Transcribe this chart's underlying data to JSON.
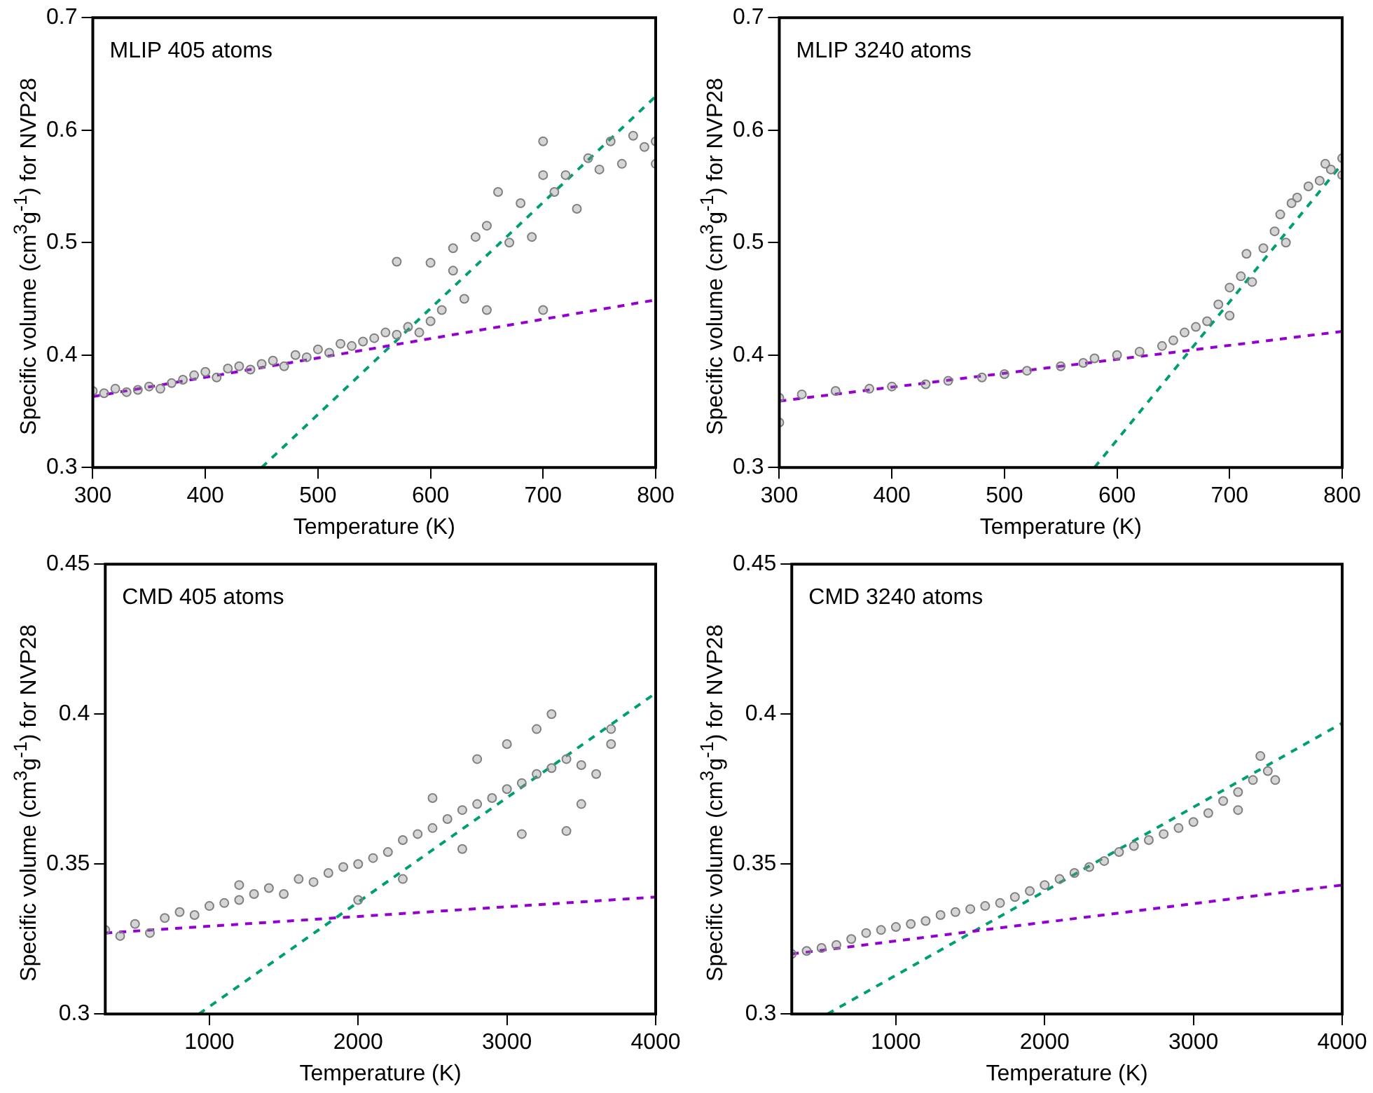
{
  "chart_data": [
    {
      "type": "scatter",
      "xlabel": "Temperature (K)",
      "ylabel": "Specific volume (cm$^{3}$g$^{-1}$) for NVP28",
      "annotations": [
        "MLIP 405 atoms"
      ],
      "xlim": [
        300,
        800
      ],
      "xticks": [
        300,
        400,
        500,
        600,
        700,
        800
      ],
      "ylim": [
        0.3,
        0.7
      ],
      "yticks": [
        0.3,
        0.4,
        0.5,
        0.6,
        0.7
      ],
      "grid": false,
      "legend": false,
      "series": [
        {
          "type": "scatter",
          "color": "#808080",
          "marker": "circle",
          "x": [
            300,
            310,
            320,
            330,
            340,
            350,
            360,
            370,
            380,
            390,
            400,
            410,
            420,
            430,
            440,
            450,
            460,
            470,
            480,
            490,
            500,
            510,
            520,
            530,
            540,
            550,
            560,
            570,
            570,
            580,
            590,
            600,
            600,
            610,
            620,
            620,
            630,
            640,
            650,
            650,
            660,
            670,
            680,
            690,
            700,
            700,
            700,
            710,
            720,
            730,
            740,
            750,
            760,
            770,
            780,
            790,
            800,
            800
          ],
          "values": [
            0.368,
            0.366,
            0.37,
            0.367,
            0.369,
            0.372,
            0.37,
            0.375,
            0.378,
            0.382,
            0.385,
            0.38,
            0.388,
            0.39,
            0.387,
            0.392,
            0.395,
            0.39,
            0.4,
            0.398,
            0.405,
            0.402,
            0.41,
            0.408,
            0.412,
            0.415,
            0.42,
            0.483,
            0.418,
            0.425,
            0.42,
            0.43,
            0.482,
            0.44,
            0.475,
            0.495,
            0.45,
            0.505,
            0.44,
            0.515,
            0.545,
            0.5,
            0.535,
            0.505,
            0.44,
            0.56,
            0.59,
            0.545,
            0.56,
            0.53,
            0.575,
            0.565,
            0.59,
            0.57,
            0.595,
            0.585,
            0.59,
            0.57
          ]
        },
        {
          "type": "line",
          "color": "#9400d3",
          "marker": "none",
          "line_style": "dashed",
          "x": [
            300,
            800
          ],
          "values": [
            0.363,
            0.449
          ]
        },
        {
          "type": "line",
          "color": "#009e73",
          "marker": "none",
          "line_style": "dashed",
          "x": [
            450,
            800
          ],
          "values": [
            0.3,
            0.63
          ]
        }
      ]
    },
    {
      "type": "scatter",
      "xlabel": "Temperature (K)",
      "ylabel": "Specific volume (cm$^{3}$g$^{-1}$) for NVP28",
      "annotations": [
        "MLIP 3240 atoms"
      ],
      "xlim": [
        300,
        800
      ],
      "xticks": [
        300,
        400,
        500,
        600,
        700,
        800
      ],
      "ylim": [
        0.3,
        0.7
      ],
      "yticks": [
        0.3,
        0.4,
        0.5,
        0.6,
        0.7
      ],
      "grid": false,
      "legend": false,
      "series": [
        {
          "type": "scatter",
          "color": "#808080",
          "marker": "circle",
          "x": [
            300,
            300,
            320,
            350,
            380,
            400,
            430,
            450,
            480,
            500,
            520,
            550,
            570,
            580,
            600,
            620,
            640,
            650,
            660,
            670,
            680,
            690,
            700,
            700,
            710,
            715,
            720,
            730,
            740,
            745,
            750,
            755,
            760,
            770,
            780,
            785,
            790,
            800,
            800
          ],
          "values": [
            0.34,
            0.362,
            0.365,
            0.368,
            0.37,
            0.372,
            0.374,
            0.377,
            0.38,
            0.383,
            0.386,
            0.39,
            0.393,
            0.397,
            0.4,
            0.403,
            0.408,
            0.413,
            0.42,
            0.425,
            0.43,
            0.445,
            0.46,
            0.435,
            0.47,
            0.49,
            0.465,
            0.495,
            0.51,
            0.525,
            0.5,
            0.535,
            0.54,
            0.55,
            0.555,
            0.57,
            0.565,
            0.56,
            0.575
          ]
        },
        {
          "type": "line",
          "color": "#9400d3",
          "marker": "none",
          "line_style": "dashed",
          "x": [
            300,
            800
          ],
          "values": [
            0.359,
            0.421
          ]
        },
        {
          "type": "line",
          "color": "#009e73",
          "marker": "none",
          "line_style": "dashed",
          "x": [
            580,
            800
          ],
          "values": [
            0.3,
            0.57
          ]
        }
      ]
    },
    {
      "type": "scatter",
      "xlabel": "Temperature (K)",
      "ylabel": "Specific volume (cm$^{3}$g$^{-1}$) for NVP28",
      "annotations": [
        "CMD 405 atoms"
      ],
      "xlim": [
        300,
        4000
      ],
      "xticks": [
        1000,
        2000,
        3000,
        4000
      ],
      "ylim": [
        0.3,
        0.45
      ],
      "yticks": [
        0.3,
        0.35,
        0.4,
        0.45
      ],
      "grid": false,
      "legend": false,
      "series": [
        {
          "type": "scatter",
          "color": "#808080",
          "marker": "circle",
          "x": [
            300,
            400,
            500,
            600,
            700,
            800,
            900,
            1000,
            1100,
            1200,
            1300,
            1400,
            1500,
            1600,
            1700,
            1800,
            1900,
            2000,
            2100,
            2200,
            2300,
            2400,
            2500,
            2600,
            2700,
            2800,
            2900,
            3000,
            3100,
            3200,
            3300,
            3400,
            3500,
            3600,
            3700,
            2000,
            2500,
            2800,
            3000,
            3200,
            3100,
            3400,
            3300,
            2700,
            2300,
            1200,
            3500,
            3700
          ],
          "values": [
            0.328,
            0.326,
            0.33,
            0.327,
            0.332,
            0.334,
            0.333,
            0.336,
            0.337,
            0.338,
            0.34,
            0.342,
            0.34,
            0.345,
            0.344,
            0.347,
            0.349,
            0.35,
            0.352,
            0.354,
            0.358,
            0.36,
            0.362,
            0.365,
            0.368,
            0.37,
            0.372,
            0.375,
            0.377,
            0.38,
            0.382,
            0.385,
            0.383,
            0.38,
            0.39,
            0.338,
            0.372,
            0.385,
            0.39,
            0.395,
            0.36,
            0.361,
            0.4,
            0.355,
            0.345,
            0.343,
            0.37,
            0.395
          ]
        },
        {
          "type": "line",
          "color": "#9400d3",
          "marker": "none",
          "line_style": "dashed",
          "x": [
            300,
            4000
          ],
          "values": [
            0.327,
            0.339
          ]
        },
        {
          "type": "line",
          "color": "#009e73",
          "marker": "none",
          "line_style": "dashed",
          "x": [
            930,
            4000
          ],
          "values": [
            0.3,
            0.407
          ]
        }
      ]
    },
    {
      "type": "scatter",
      "xlabel": "Temperature (K)",
      "ylabel": "Specific volume (cm$^{3}$g$^{-1}$) for NVP28",
      "annotations": [
        "CMD 3240 atoms"
      ],
      "xlim": [
        300,
        4000
      ],
      "xticks": [
        1000,
        2000,
        3000,
        4000
      ],
      "ylim": [
        0.3,
        0.45
      ],
      "yticks": [
        0.3,
        0.35,
        0.4,
        0.45
      ],
      "grid": false,
      "legend": false,
      "series": [
        {
          "type": "scatter",
          "color": "#808080",
          "marker": "circle",
          "x": [
            300,
            400,
            500,
            600,
            700,
            800,
            900,
            1000,
            1100,
            1200,
            1300,
            1400,
            1500,
            1600,
            1700,
            1800,
            1900,
            2000,
            2100,
            2200,
            2300,
            2400,
            2500,
            2600,
            2700,
            2800,
            2900,
            3000,
            3100,
            3200,
            3300,
            3400,
            3500,
            3550,
            3450,
            3300
          ],
          "values": [
            0.32,
            0.321,
            0.322,
            0.323,
            0.325,
            0.327,
            0.328,
            0.329,
            0.33,
            0.331,
            0.333,
            0.334,
            0.335,
            0.336,
            0.337,
            0.339,
            0.341,
            0.343,
            0.345,
            0.347,
            0.349,
            0.351,
            0.354,
            0.356,
            0.358,
            0.36,
            0.362,
            0.364,
            0.367,
            0.371,
            0.374,
            0.378,
            0.381,
            0.378,
            0.386,
            0.368
          ]
        },
        {
          "type": "line",
          "color": "#9400d3",
          "marker": "none",
          "line_style": "dashed",
          "x": [
            300,
            4000
          ],
          "values": [
            0.32,
            0.343
          ]
        },
        {
          "type": "line",
          "color": "#009e73",
          "marker": "none",
          "line_style": "dashed",
          "x": [
            540,
            4000
          ],
          "values": [
            0.3,
            0.397
          ]
        }
      ]
    }
  ]
}
